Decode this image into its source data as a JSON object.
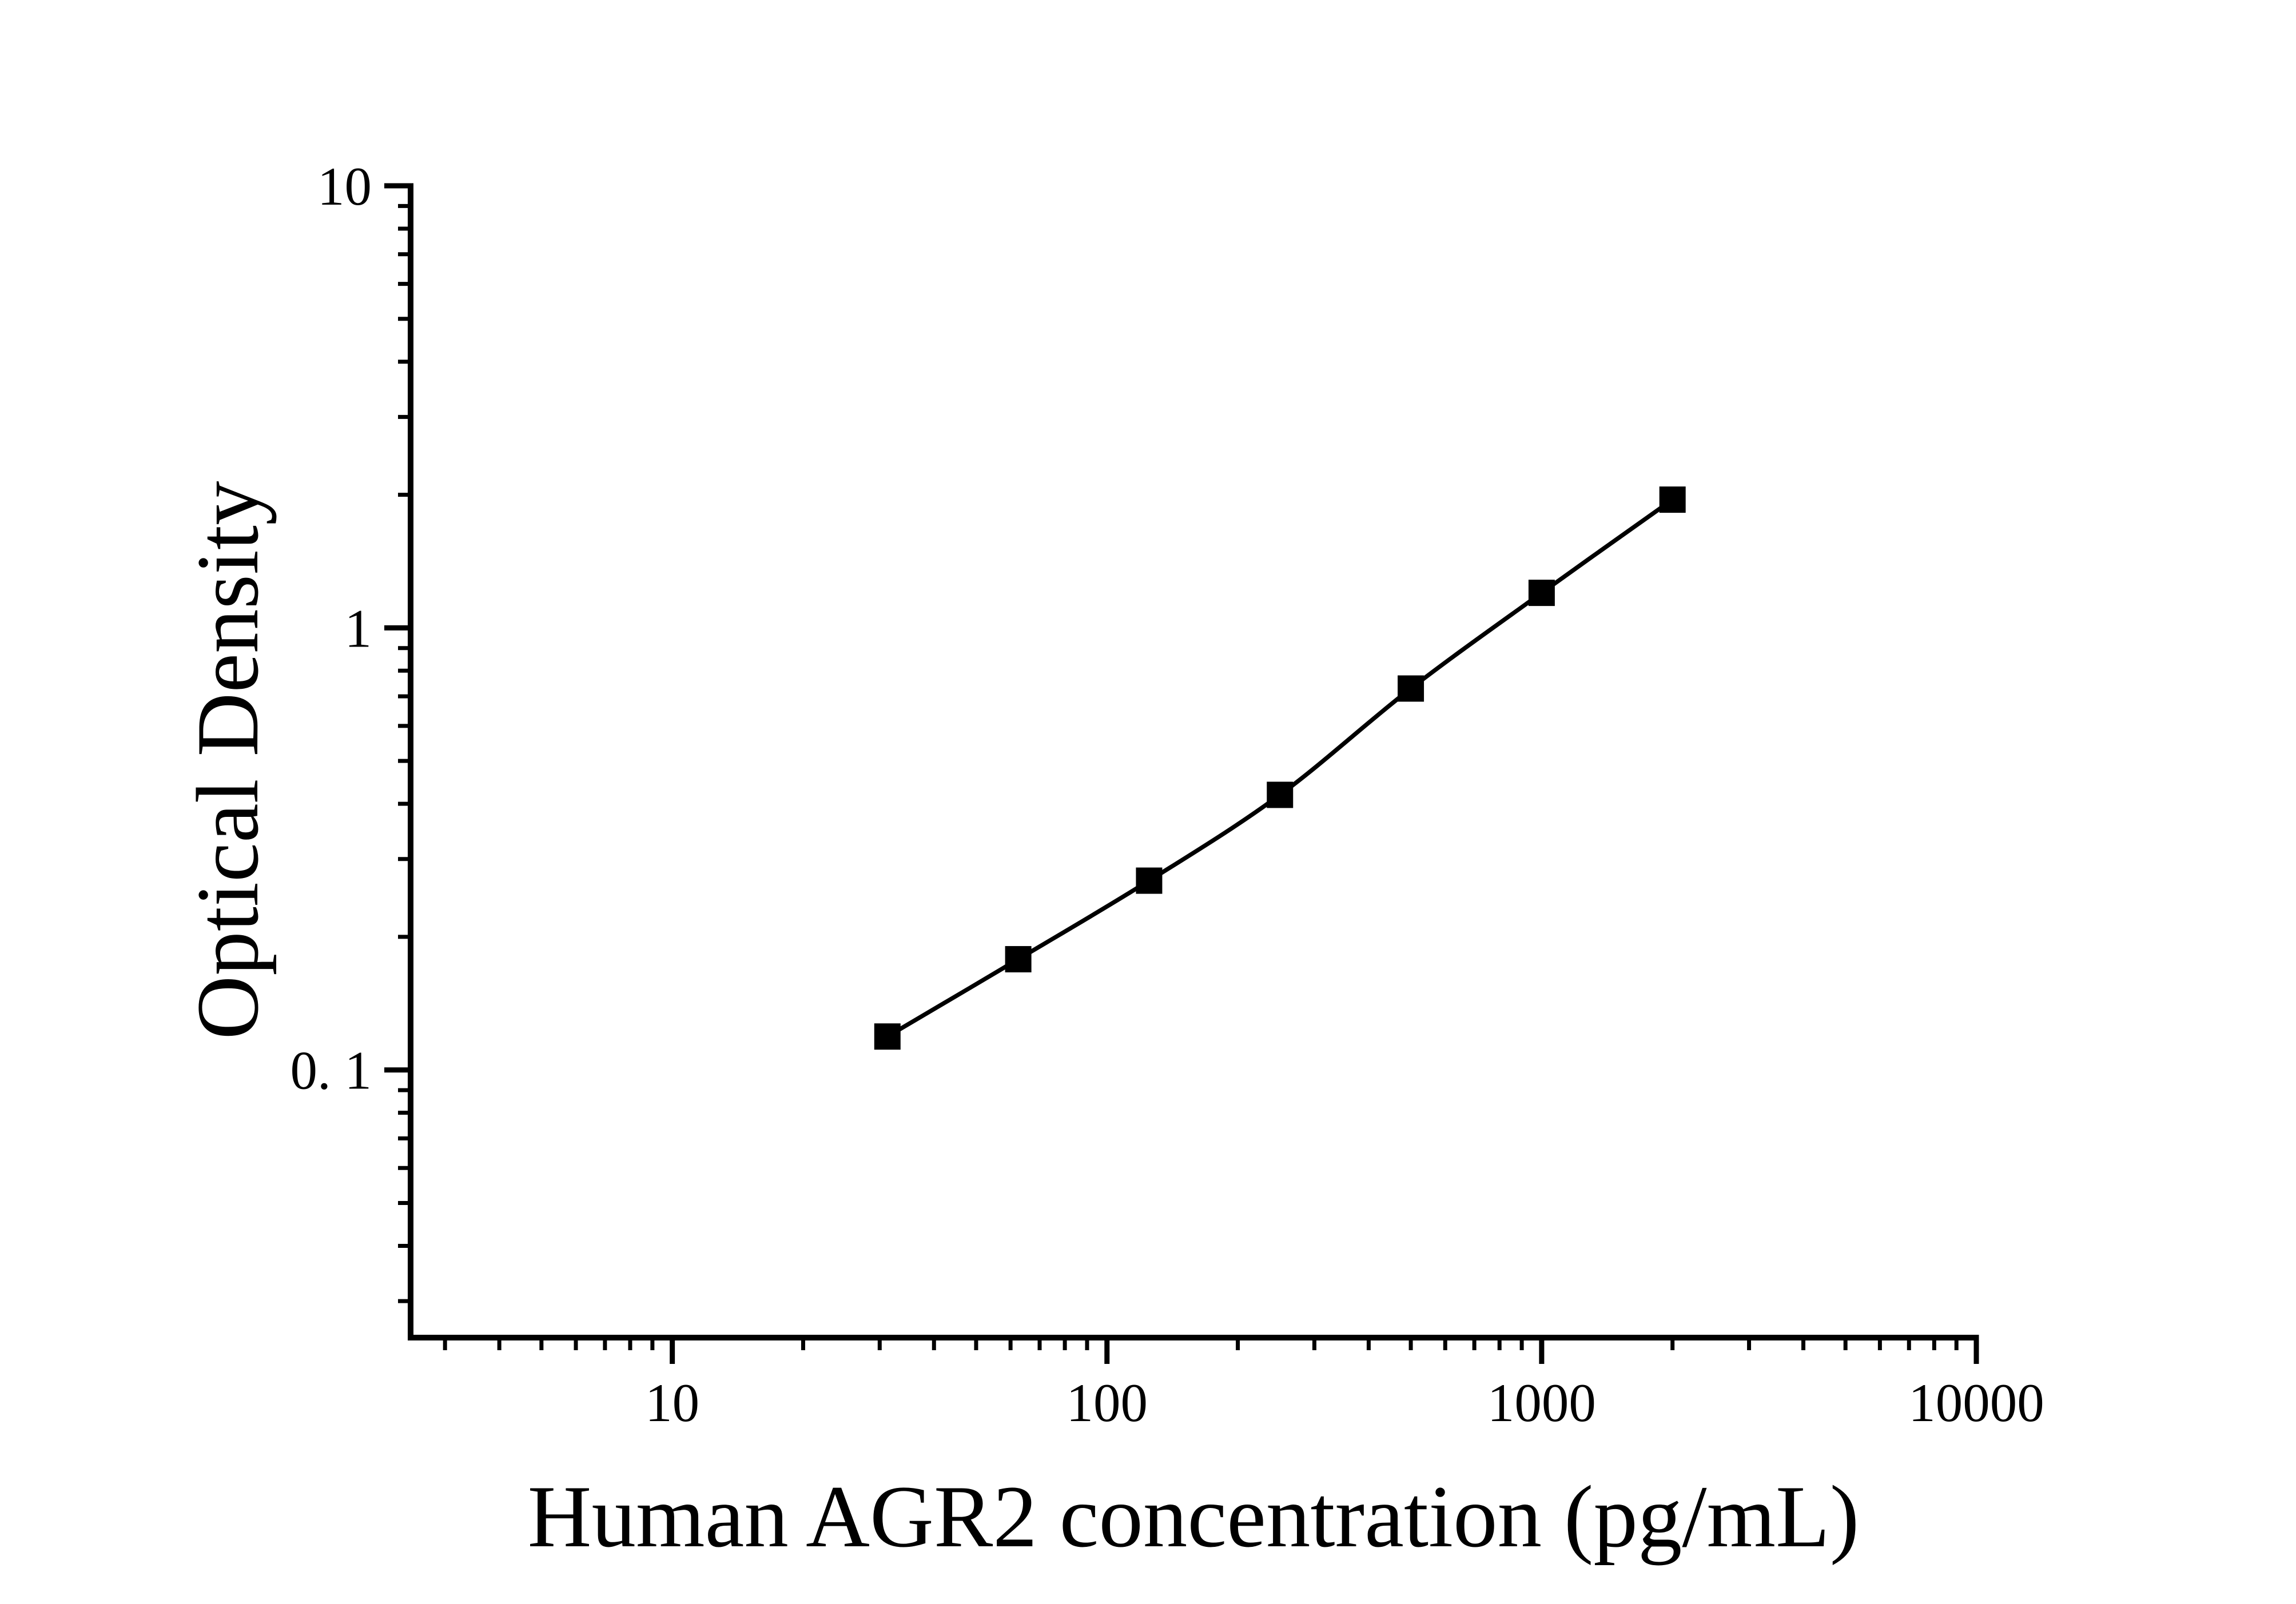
{
  "chart_data": {
    "type": "line",
    "title": "",
    "xlabel": "Human AGR2 concentration (pg/mL)",
    "ylabel": "Optical Density",
    "x_scale": "log",
    "y_scale": "log",
    "xlim": [
      2.5,
      10000
    ],
    "ylim": [
      0.0248,
      10
    ],
    "grid": false,
    "legend": "none",
    "background": "#ffffff",
    "axis_color": "#000000",
    "x_major_ticks": [
      {
        "value": 10,
        "label": "10"
      },
      {
        "value": 100,
        "label": "100"
      },
      {
        "value": 1000,
        "label": "1000"
      },
      {
        "value": 10000,
        "label": "10000"
      }
    ],
    "y_major_ticks": [
      {
        "value": 10,
        "label": "10"
      },
      {
        "value": 1,
        "label": "1"
      },
      {
        "value": 0.1,
        "label": "0. 1"
      }
    ],
    "series": [
      {
        "name": "standard-curve",
        "marker": "filled-square",
        "color": "#000000",
        "points": [
          {
            "x": 31.25,
            "y": 0.119
          },
          {
            "x": 62.5,
            "y": 0.178
          },
          {
            "x": 125,
            "y": 0.268
          },
          {
            "x": 250,
            "y": 0.419
          },
          {
            "x": 500,
            "y": 0.729
          },
          {
            "x": 1000,
            "y": 1.2
          },
          {
            "x": 2000,
            "y": 1.95
          }
        ]
      }
    ]
  }
}
